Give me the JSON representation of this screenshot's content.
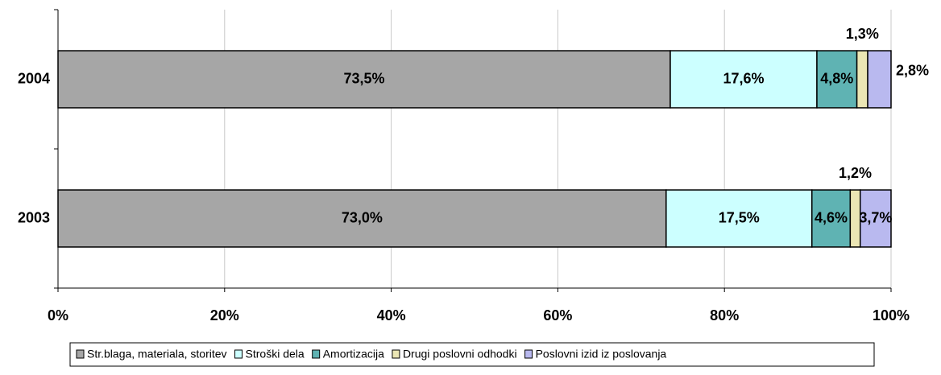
{
  "chart_data": {
    "type": "stacked_barh",
    "categories": [
      "2004",
      "2003"
    ],
    "series": [
      {
        "name": "Str.blaga, materiala, storitev",
        "color": "#a6a6a6",
        "values": [
          73.5,
          73.0
        ],
        "value_labels": [
          "73,5%",
          "73,0%"
        ]
      },
      {
        "name": "Stroški dela",
        "color": "#ccffff",
        "values": [
          17.6,
          17.5
        ],
        "value_labels": [
          "17,6%",
          "17,5%"
        ]
      },
      {
        "name": "Amortizacija",
        "color": "#5fb3b3",
        "values": [
          4.8,
          4.6
        ],
        "value_labels": [
          "4,8%",
          "4,6%"
        ]
      },
      {
        "name": "Drugi poslovni odhodki",
        "color": "#ebe6b4",
        "values": [
          1.3,
          1.2
        ],
        "value_labels": [
          "1,3%",
          "1,2%"
        ]
      },
      {
        "name": "Poslovni izid iz poslovanja",
        "color": "#b9b9ef",
        "values": [
          2.8,
          3.7
        ],
        "value_labels": [
          "2,8%",
          "3,7%"
        ]
      }
    ],
    "xlim": [
      0,
      100
    ],
    "xticks": [
      {
        "value": 0,
        "label": "0%"
      },
      {
        "value": 20,
        "label": "20%"
      },
      {
        "value": 40,
        "label": "40%"
      },
      {
        "value": 60,
        "label": "60%"
      },
      {
        "value": 80,
        "label": "80%"
      },
      {
        "value": 100,
        "label": "100%"
      }
    ],
    "grid": true,
    "legend": "bottom"
  }
}
